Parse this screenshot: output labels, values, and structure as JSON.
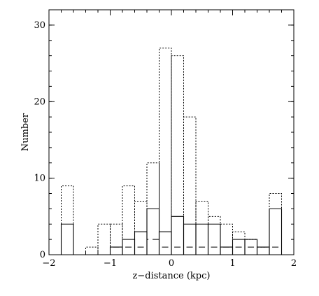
{
  "chart_data": {
    "type": "histogram",
    "xlabel": "z−distance (kpc)",
    "ylabel": "Number",
    "xlim": [
      -2,
      2
    ],
    "ylim": [
      0,
      32
    ],
    "x_ticks": [
      {
        "value": -2,
        "label": "−2"
      },
      {
        "value": -1,
        "label": "−1"
      },
      {
        "value": 0,
        "label": "0"
      },
      {
        "value": 1,
        "label": "1"
      },
      {
        "value": 2,
        "label": "2"
      }
    ],
    "y_ticks": [
      {
        "value": 0,
        "label": "0"
      },
      {
        "value": 10,
        "label": "10"
      },
      {
        "value": 20,
        "label": "20"
      },
      {
        "value": 30,
        "label": "30"
      }
    ],
    "bin_edges": [
      -1.8,
      -1.6,
      -1.4,
      -1.2,
      -1.0,
      -0.8,
      -0.6,
      -0.4,
      -0.2,
      0.0,
      0.2,
      0.4,
      0.6,
      0.8,
      1.0,
      1.2,
      1.4,
      1.6,
      1.8
    ],
    "series": [
      {
        "style": "dotted",
        "values": [
          9,
          0,
          1,
          4,
          4,
          9,
          7,
          12,
          27,
          26,
          18,
          7,
          5,
          4,
          3,
          2,
          1,
          8
        ]
      },
      {
        "style": "solid",
        "values": [
          4,
          0,
          0,
          0,
          1,
          2,
          3,
          6,
          3,
          5,
          4,
          4,
          4,
          1,
          2,
          2,
          1,
          6
        ]
      },
      {
        "style": "dashed",
        "values": [
          0,
          0,
          0,
          0,
          1,
          1,
          1,
          2,
          1,
          1,
          1,
          1,
          1,
          1,
          1,
          1,
          1,
          1
        ]
      }
    ]
  }
}
